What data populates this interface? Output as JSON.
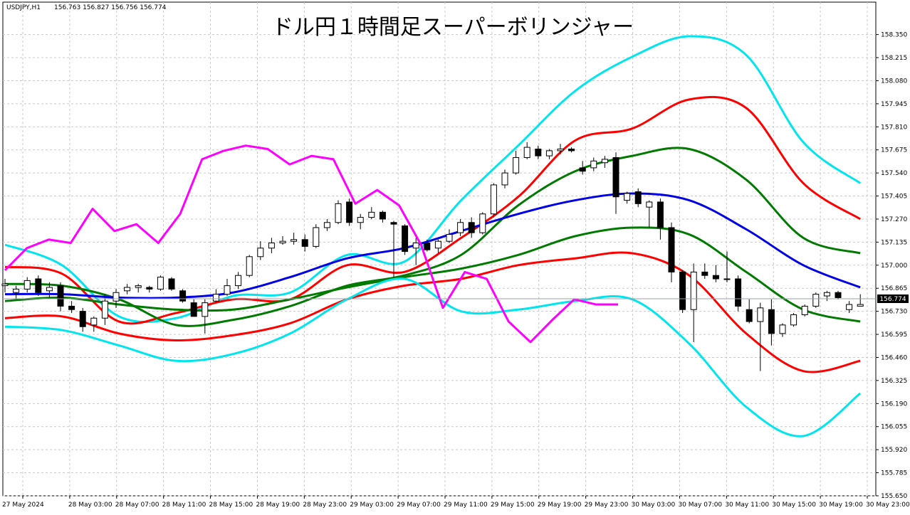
{
  "window": {
    "symbol_header": "USDJPY,H1",
    "ohlc_header": "156.763 156.827 156.756 156.774"
  },
  "chart_data": {
    "type": "candlestick",
    "title": "ドル円１時間足スーパーボリンジャー",
    "symbol": "USDJPY",
    "timeframe": "H1",
    "current_price": 156.774,
    "current_price_label": "156.774",
    "ylim": [
      155.65,
      158.415
    ],
    "grid": true,
    "price_ticks": [
      "158.350",
      "158.215",
      "158.080",
      "157.945",
      "157.810",
      "157.675",
      "157.540",
      "157.405",
      "157.270",
      "157.135",
      "157.000",
      "156.865",
      "156.730",
      "156.595",
      "156.460",
      "156.325",
      "156.190",
      "156.055",
      "155.920",
      "155.785",
      "155.650"
    ],
    "time_labels": [
      "27 May 2024",
      "28 May 03:00",
      "28 May 07:00",
      "28 May 11:00",
      "28 May 15:00",
      "28 May 19:00",
      "28 May 23:00",
      "29 May 03:00",
      "29 May 07:00",
      "29 May 11:00",
      "29 May 15:00",
      "29 May 19:00",
      "29 May 23:00",
      "30 May 03:00",
      "30 May 07:00",
      "30 May 11:00",
      "30 May 15:00",
      "30 May 19:00",
      "30 May 23:00"
    ],
    "candles": [
      {
        "o": 156.88,
        "h": 156.92,
        "l": 156.84,
        "c": 156.89
      },
      {
        "o": 156.84,
        "h": 156.88,
        "l": 156.8,
        "c": 156.86
      },
      {
        "o": 156.86,
        "h": 156.93,
        "l": 156.84,
        "c": 156.91
      },
      {
        "o": 156.92,
        "h": 156.94,
        "l": 156.82,
        "c": 156.84
      },
      {
        "o": 156.85,
        "h": 156.9,
        "l": 156.81,
        "c": 156.87
      },
      {
        "o": 156.88,
        "h": 156.9,
        "l": 156.73,
        "c": 156.76
      },
      {
        "o": 156.76,
        "h": 156.79,
        "l": 156.72,
        "c": 156.74
      },
      {
        "o": 156.73,
        "h": 156.75,
        "l": 156.61,
        "c": 156.64
      },
      {
        "o": 156.65,
        "h": 156.7,
        "l": 156.61,
        "c": 156.69
      },
      {
        "o": 156.69,
        "h": 156.83,
        "l": 156.65,
        "c": 156.79
      },
      {
        "o": 156.79,
        "h": 156.86,
        "l": 156.75,
        "c": 156.84
      },
      {
        "o": 156.85,
        "h": 156.89,
        "l": 156.83,
        "c": 156.87
      },
      {
        "o": 156.87,
        "h": 156.89,
        "l": 156.84,
        "c": 156.88
      },
      {
        "o": 156.87,
        "h": 156.88,
        "l": 156.84,
        "c": 156.86
      },
      {
        "o": 156.86,
        "h": 156.94,
        "l": 156.85,
        "c": 156.93
      },
      {
        "o": 156.92,
        "h": 156.93,
        "l": 156.85,
        "c": 156.86
      },
      {
        "o": 156.85,
        "h": 156.86,
        "l": 156.78,
        "c": 156.79
      },
      {
        "o": 156.78,
        "h": 156.8,
        "l": 156.7,
        "c": 156.7
      },
      {
        "o": 156.7,
        "h": 156.8,
        "l": 156.6,
        "c": 156.78
      },
      {
        "o": 156.79,
        "h": 156.86,
        "l": 156.78,
        "c": 156.83
      },
      {
        "o": 156.83,
        "h": 156.92,
        "l": 156.82,
        "c": 156.88
      },
      {
        "o": 156.88,
        "h": 156.96,
        "l": 156.86,
        "c": 156.94
      },
      {
        "o": 156.94,
        "h": 157.06,
        "l": 156.93,
        "c": 157.05
      },
      {
        "o": 157.05,
        "h": 157.14,
        "l": 157.03,
        "c": 157.1
      },
      {
        "o": 157.1,
        "h": 157.16,
        "l": 157.07,
        "c": 157.13
      },
      {
        "o": 157.13,
        "h": 157.17,
        "l": 157.12,
        "c": 157.14
      },
      {
        "o": 157.14,
        "h": 157.19,
        "l": 157.12,
        "c": 157.15
      },
      {
        "o": 157.15,
        "h": 157.18,
        "l": 157.08,
        "c": 157.11
      },
      {
        "o": 157.11,
        "h": 157.24,
        "l": 157.1,
        "c": 157.22
      },
      {
        "o": 157.22,
        "h": 157.27,
        "l": 157.2,
        "c": 157.25
      },
      {
        "o": 157.25,
        "h": 157.38,
        "l": 157.24,
        "c": 157.36
      },
      {
        "o": 157.37,
        "h": 157.39,
        "l": 157.23,
        "c": 157.25
      },
      {
        "o": 157.25,
        "h": 157.3,
        "l": 157.21,
        "c": 157.28
      },
      {
        "o": 157.28,
        "h": 157.34,
        "l": 157.27,
        "c": 157.31
      },
      {
        "o": 157.31,
        "h": 157.32,
        "l": 157.25,
        "c": 157.27
      },
      {
        "o": 157.25,
        "h": 157.26,
        "l": 156.93,
        "c": 157.24
      },
      {
        "o": 157.23,
        "h": 157.24,
        "l": 157.06,
        "c": 157.08
      },
      {
        "o": 157.1,
        "h": 157.16,
        "l": 157.0,
        "c": 157.13
      },
      {
        "o": 157.13,
        "h": 157.15,
        "l": 157.08,
        "c": 157.09
      },
      {
        "o": 157.1,
        "h": 157.15,
        "l": 157.07,
        "c": 157.14
      },
      {
        "o": 157.14,
        "h": 157.21,
        "l": 157.13,
        "c": 157.18
      },
      {
        "o": 157.19,
        "h": 157.27,
        "l": 157.17,
        "c": 157.25
      },
      {
        "o": 157.25,
        "h": 157.28,
        "l": 157.16,
        "c": 157.19
      },
      {
        "o": 157.19,
        "h": 157.31,
        "l": 157.18,
        "c": 157.3
      },
      {
        "o": 157.3,
        "h": 157.48,
        "l": 157.28,
        "c": 157.47
      },
      {
        "o": 157.47,
        "h": 157.56,
        "l": 157.45,
        "c": 157.54
      },
      {
        "o": 157.54,
        "h": 157.67,
        "l": 157.53,
        "c": 157.63
      },
      {
        "o": 157.63,
        "h": 157.72,
        "l": 157.62,
        "c": 157.69
      },
      {
        "o": 157.68,
        "h": 157.7,
        "l": 157.62,
        "c": 157.64
      },
      {
        "o": 157.64,
        "h": 157.68,
        "l": 157.62,
        "c": 157.67
      },
      {
        "o": 157.67,
        "h": 157.71,
        "l": 157.65,
        "c": 157.68
      },
      {
        "o": 157.68,
        "h": 157.69,
        "l": 157.66,
        "c": 157.67
      },
      {
        "o": 157.57,
        "h": 157.61,
        "l": 157.53,
        "c": 157.55
      },
      {
        "o": 157.57,
        "h": 157.63,
        "l": 157.55,
        "c": 157.61
      },
      {
        "o": 157.6,
        "h": 157.64,
        "l": 157.57,
        "c": 157.62
      },
      {
        "o": 157.63,
        "h": 157.66,
        "l": 157.3,
        "c": 157.4
      },
      {
        "o": 157.38,
        "h": 157.43,
        "l": 157.36,
        "c": 157.42
      },
      {
        "o": 157.43,
        "h": 157.45,
        "l": 157.34,
        "c": 157.36
      },
      {
        "o": 157.34,
        "h": 157.38,
        "l": 157.22,
        "c": 157.37
      },
      {
        "o": 157.37,
        "h": 157.39,
        "l": 157.15,
        "c": 157.22
      },
      {
        "o": 157.22,
        "h": 157.25,
        "l": 156.9,
        "c": 156.96
      },
      {
        "o": 156.96,
        "h": 156.97,
        "l": 156.72,
        "c": 156.74
      },
      {
        "o": 156.74,
        "h": 157.01,
        "l": 156.55,
        "c": 156.96
      },
      {
        "o": 156.96,
        "h": 157.01,
        "l": 156.92,
        "c": 156.94
      },
      {
        "o": 156.94,
        "h": 157.0,
        "l": 156.9,
        "c": 156.92
      },
      {
        "o": 156.92,
        "h": 157.08,
        "l": 156.9,
        "c": 156.92
      },
      {
        "o": 156.92,
        "h": 156.94,
        "l": 156.73,
        "c": 156.76
      },
      {
        "o": 156.74,
        "h": 156.8,
        "l": 156.66,
        "c": 156.67
      },
      {
        "o": 156.67,
        "h": 156.78,
        "l": 156.38,
        "c": 156.75
      },
      {
        "o": 156.74,
        "h": 156.8,
        "l": 156.53,
        "c": 156.6
      },
      {
        "o": 156.6,
        "h": 156.66,
        "l": 156.58,
        "c": 156.65
      },
      {
        "o": 156.65,
        "h": 156.72,
        "l": 156.64,
        "c": 156.71
      },
      {
        "o": 156.71,
        "h": 156.77,
        "l": 156.7,
        "c": 156.76
      },
      {
        "o": 156.76,
        "h": 156.84,
        "l": 156.75,
        "c": 156.83
      },
      {
        "o": 156.82,
        "h": 156.85,
        "l": 156.79,
        "c": 156.84
      },
      {
        "o": 156.84,
        "h": 156.85,
        "l": 156.8,
        "c": 156.81
      },
      {
        "o": 156.74,
        "h": 156.79,
        "l": 156.72,
        "c": 156.77
      },
      {
        "o": 156.76,
        "h": 156.83,
        "l": 156.76,
        "c": 156.77
      }
    ],
    "series": [
      {
        "color": "#00e5ee",
        "values": [
          157.12,
          157.0,
          156.7,
          156.69,
          156.82,
          156.84,
          157.06,
          157.02,
          157.38,
          157.7,
          158.02,
          158.22,
          158.34,
          158.23,
          157.72,
          157.48
        ]
      },
      {
        "color": "#ff0000",
        "values": [
          156.99,
          156.95,
          156.67,
          156.72,
          156.8,
          156.8,
          157.0,
          156.96,
          157.16,
          157.4,
          157.73,
          157.8,
          157.97,
          157.92,
          157.48,
          157.27
        ]
      },
      {
        "color": "#007a00",
        "values": [
          156.89,
          156.88,
          156.8,
          156.65,
          156.68,
          156.76,
          156.88,
          156.94,
          157.06,
          157.35,
          157.55,
          157.64,
          157.68,
          157.5,
          157.16,
          157.07
        ]
      },
      {
        "color": "#0000e6",
        "values": [
          156.83,
          156.83,
          156.81,
          156.81,
          156.84,
          156.93,
          157.04,
          157.1,
          157.2,
          157.3,
          157.38,
          157.42,
          157.38,
          157.21,
          157.0,
          156.87
        ]
      },
      {
        "color": "#007a00",
        "values": [
          156.79,
          156.81,
          156.77,
          156.74,
          156.74,
          156.8,
          156.87,
          156.93,
          156.98,
          157.06,
          157.17,
          157.22,
          157.18,
          156.96,
          156.74,
          156.67
        ]
      },
      {
        "color": "#ff0000",
        "values": [
          156.69,
          156.7,
          156.6,
          156.56,
          156.59,
          156.66,
          156.8,
          156.88,
          156.92,
          157.0,
          157.04,
          157.07,
          156.94,
          156.6,
          156.38,
          156.44
        ]
      },
      {
        "color": "#00e5ee",
        "values": [
          156.64,
          156.62,
          156.53,
          156.44,
          156.48,
          156.6,
          156.8,
          156.92,
          156.73,
          156.74,
          156.79,
          156.8,
          156.54,
          156.17,
          156.0,
          156.25
        ]
      }
    ],
    "chikou": {
      "color": "#ff00ff",
      "values": [
        156.97,
        157.1,
        157.15,
        157.13,
        157.33,
        157.2,
        157.24,
        157.13,
        157.3,
        157.62,
        157.67,
        157.7,
        157.68,
        157.59,
        157.64,
        157.62,
        157.36,
        157.44,
        157.35,
        157.12,
        156.75,
        156.96,
        156.92,
        156.67,
        156.55,
        156.68,
        156.8,
        156.77,
        156.77
      ]
    }
  }
}
